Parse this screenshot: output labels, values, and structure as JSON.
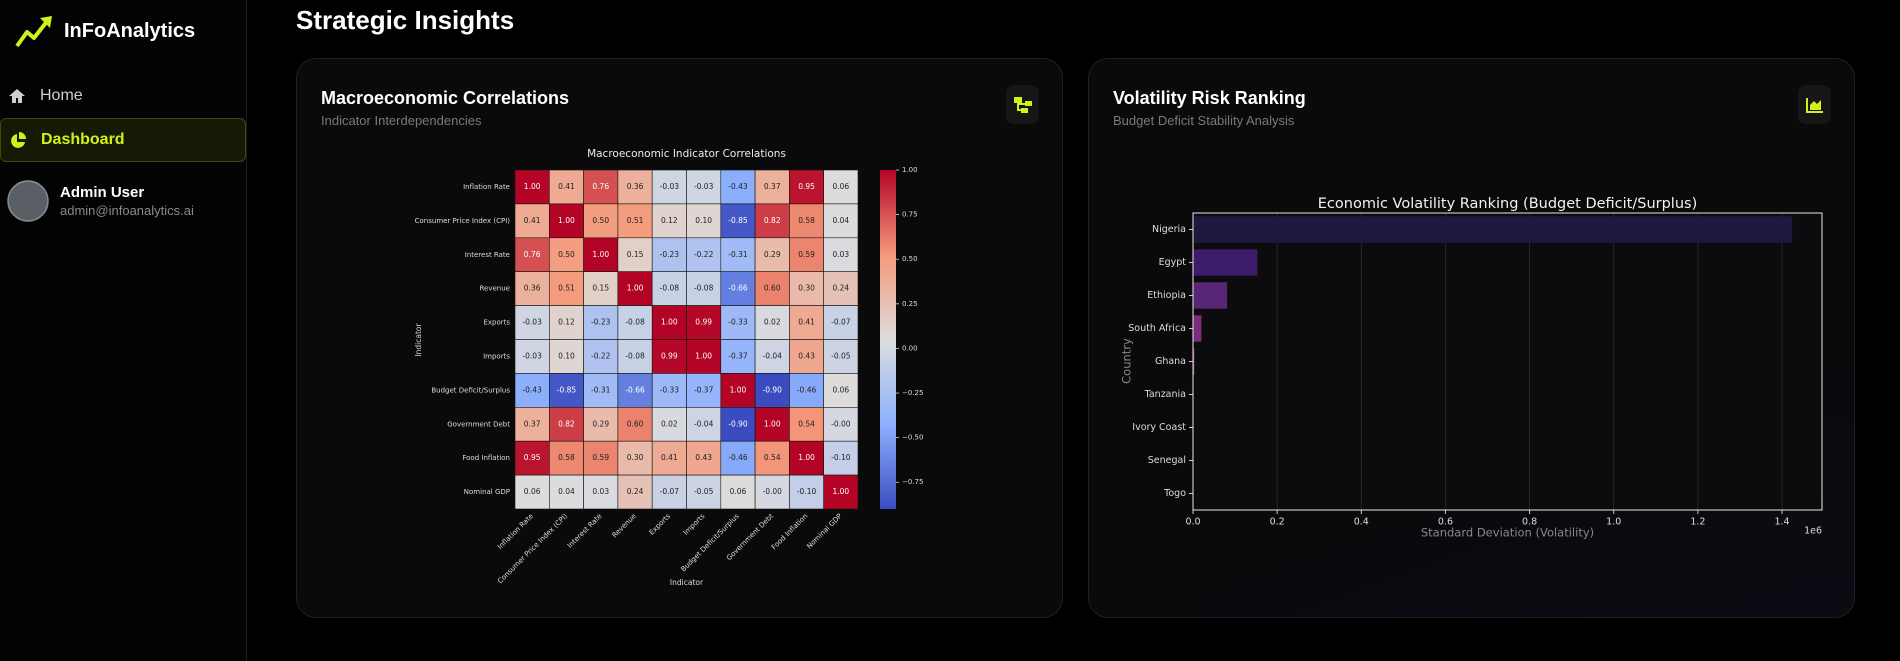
{
  "sidebar": {
    "brand": "InFoAnalytics",
    "nav": [
      "Home",
      "Dashboard"
    ],
    "user": {
      "name": "Admin User",
      "email": "admin@infoanalytics.ai"
    }
  },
  "page_title": "Strategic Insights",
  "cards": [
    {
      "title": "Macroeconomic Correlations",
      "subtitle": "Indicator Interdependencies"
    },
    {
      "title": "Volatility Risk Ranking",
      "subtitle": "Budget Deficit Stability Analysis"
    }
  ],
  "chart_data": [
    {
      "type": "heatmap",
      "title": "Macroeconomic Indicator Correlations",
      "xlabel": "Indicator",
      "ylabel": "Indicator",
      "categories": [
        "Inflation Rate",
        "Consumer Price Index (CPI)",
        "Interest Rate",
        "Revenue",
        "Exports",
        "Imports",
        "Budget Deficit/Surplus",
        "Government Debt",
        "Food Inflation",
        "Nominal GDP"
      ],
      "values": [
        [
          1.0,
          0.41,
          0.76,
          0.36,
          -0.03,
          -0.03,
          -0.43,
          0.37,
          0.95,
          0.06
        ],
        [
          0.41,
          1.0,
          0.5,
          0.51,
          0.12,
          0.1,
          -0.85,
          0.82,
          0.58,
          0.04
        ],
        [
          0.76,
          0.5,
          1.0,
          0.15,
          -0.23,
          -0.22,
          -0.31,
          0.29,
          0.59,
          0.03
        ],
        [
          0.36,
          0.51,
          0.15,
          1.0,
          -0.08,
          -0.08,
          -0.66,
          0.6,
          0.3,
          0.24
        ],
        [
          -0.03,
          0.12,
          -0.23,
          -0.08,
          1.0,
          0.99,
          -0.33,
          0.02,
          0.41,
          -0.07
        ],
        [
          -0.03,
          0.1,
          -0.22,
          -0.08,
          0.99,
          1.0,
          -0.37,
          -0.04,
          0.43,
          -0.05
        ],
        [
          -0.43,
          -0.85,
          -0.31,
          -0.66,
          -0.33,
          -0.37,
          1.0,
          -0.9,
          -0.46,
          0.06
        ],
        [
          0.37,
          0.82,
          0.29,
          0.6,
          0.02,
          -0.04,
          -0.9,
          1.0,
          0.54,
          0
        ],
        [
          0.95,
          0.58,
          0.59,
          0.3,
          0.41,
          0.43,
          -0.46,
          0.54,
          1.0,
          -0.1
        ],
        [
          0.06,
          0.04,
          0.03,
          0.24,
          -0.07,
          -0.05,
          0.06,
          0,
          -0.1,
          1.0
        ]
      ],
      "value_labels": [
        [
          "1.00",
          "0.41",
          "0.76",
          "0.36",
          "-0.03",
          "-0.03",
          "-0.43",
          "0.37",
          "0.95",
          "0.06"
        ],
        [
          "0.41",
          "1.00",
          "0.50",
          "0.51",
          "0.12",
          "0.10",
          "-0.85",
          "0.82",
          "0.58",
          "0.04"
        ],
        [
          "0.76",
          "0.50",
          "1.00",
          "0.15",
          "-0.23",
          "-0.22",
          "-0.31",
          "0.29",
          "0.59",
          "0.03"
        ],
        [
          "0.36",
          "0.51",
          "0.15",
          "1.00",
          "-0.08",
          "-0.08",
          "-0.66",
          "0.60",
          "0.30",
          "0.24"
        ],
        [
          "-0.03",
          "0.12",
          "-0.23",
          "-0.08",
          "1.00",
          "0.99",
          "-0.33",
          "0.02",
          "0.41",
          "-0.07"
        ],
        [
          "-0.03",
          "0.10",
          "-0.22",
          "-0.08",
          "0.99",
          "1.00",
          "-0.37",
          "-0.04",
          "0.43",
          "-0.05"
        ],
        [
          "-0.43",
          "-0.85",
          "-0.31",
          "-0.66",
          "-0.33",
          "-0.37",
          "1.00",
          "-0.90",
          "-0.46",
          "0.06"
        ],
        [
          "0.37",
          "0.82",
          "0.29",
          "0.60",
          "0.02",
          "-0.04",
          "-0.90",
          "1.00",
          "0.54",
          "-0.00"
        ],
        [
          "0.95",
          "0.58",
          "0.59",
          "0.30",
          "0.41",
          "0.43",
          "-0.46",
          "0.54",
          "1.00",
          "-0.10"
        ],
        [
          "0.06",
          "0.04",
          "0.03",
          "0.24",
          "-0.07",
          "-0.05",
          "0.06",
          "-0.00",
          "-0.10",
          "1.00"
        ]
      ],
      "zlim": [
        -0.9,
        1.0
      ],
      "zticks": [
        {
          "value": 1.0,
          "label": "1.00"
        },
        {
          "value": 0.75,
          "label": "0.75"
        },
        {
          "value": 0.5,
          "label": "0.50"
        },
        {
          "value": 0.25,
          "label": "0.25"
        },
        {
          "value": 0,
          "label": "0.00"
        },
        {
          "value": -0.25,
          "label": "−0.25"
        },
        {
          "value": -0.5,
          "label": "−0.50"
        },
        {
          "value": -0.75,
          "label": "−0.75"
        }
      ],
      "colormap": "coolwarm"
    },
    {
      "type": "barh",
      "title": "Economic Volatility Ranking (Budget Deficit/Surplus)",
      "xlabel": "Standard Deviation (Volatility)",
      "ylabel": "Country",
      "categories": [
        "Nigeria",
        "Egypt",
        "Ethiopia",
        "South Africa",
        "Ghana",
        "Tanzania",
        "Ivory Coast",
        "Senegal",
        "Togo"
      ],
      "values": [
        1.424,
        0.153,
        0.081,
        0.02,
        0.003,
        0.001,
        0.0005,
        0.0003,
        0.0002
      ],
      "colors": [
        "#1c1840",
        "#3d1c6c",
        "#592575",
        "#7c2c7b",
        "#a3377b",
        "#c2417a",
        "#d8547a",
        "#e56a7c",
        "#ef8680"
      ],
      "xlim": [
        0,
        1.495
      ],
      "xticks": [
        {
          "value": 0,
          "label": "0.0"
        },
        0.2,
        0.4,
        0.6,
        0.8,
        {
          "value": 1,
          "label": "1.0"
        },
        1.2,
        1.4
      ],
      "x_offset_label": "1e6",
      "grid": true
    }
  ]
}
